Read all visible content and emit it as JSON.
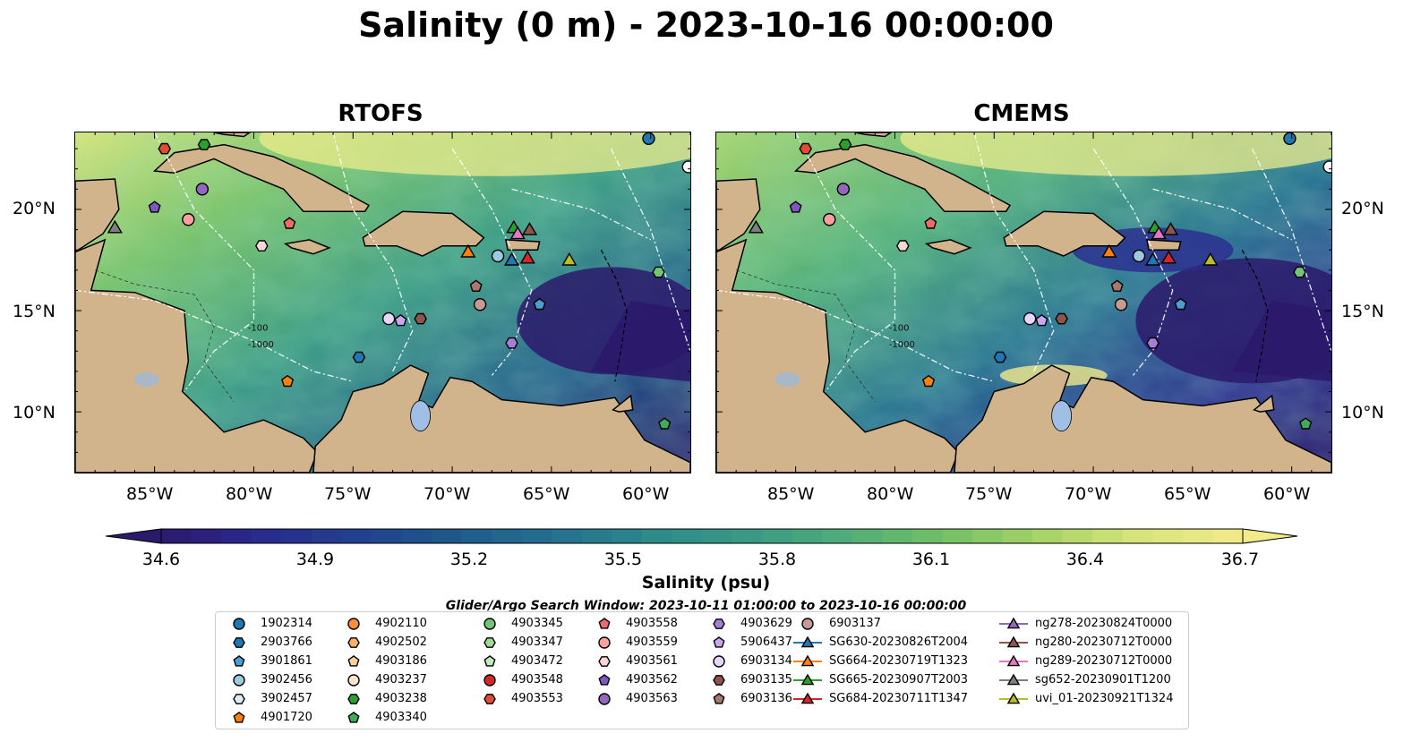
{
  "title": "Salinity (0 m) - 2023-10-16 00:00:00",
  "panels": [
    {
      "title": "RTOFS"
    },
    {
      "title": "CMEMS"
    }
  ],
  "axes": {
    "lon_ticks": [
      "85°W",
      "80°W",
      "75°W",
      "70°W",
      "65°W",
      "60°W"
    ],
    "lat_ticks": [
      "20°N",
      "15°N",
      "10°N"
    ],
    "lon_range": [
      -89,
      -58
    ],
    "lat_range": [
      7,
      23.8
    ]
  },
  "colorbar": {
    "label": "Salinity (psu)",
    "ticks": [
      "34.6",
      "34.9",
      "35.2",
      "35.5",
      "35.8",
      "36.1",
      "36.4",
      "36.7"
    ],
    "range": [
      34.6,
      36.7
    ],
    "colors": [
      "#2b1a6b",
      "#2a2a8f",
      "#22408f",
      "#1f5a8a",
      "#247090",
      "#2c8a8a",
      "#3a9a84",
      "#50ae78",
      "#74c066",
      "#a8d468",
      "#d9e57a",
      "#f3ea8a"
    ]
  },
  "search_window": "Glider/Argo Search Window: 2023-10-11 01:00:00 to 2023-10-16 00:00:00",
  "contour_labels": [
    "-100",
    "-1000"
  ],
  "legend": {
    "columns": [
      [
        {
          "label": "1902314",
          "marker": "circle",
          "color": "#1f77b4"
        },
        {
          "label": "2903766",
          "marker": "hexagon",
          "color": "#1f77b4"
        },
        {
          "label": "3901861",
          "marker": "pentagon",
          "color": "#4a9fd0"
        },
        {
          "label": "3902456",
          "marker": "circle",
          "color": "#9ecae1"
        },
        {
          "label": "3902457",
          "marker": "hexagon",
          "color": "#deebf7"
        },
        {
          "label": "4901720",
          "marker": "pentagon",
          "color": "#ff7f0e"
        }
      ],
      [
        {
          "label": "4902110",
          "marker": "circle",
          "color": "#fd8d3c"
        },
        {
          "label": "4902502",
          "marker": "hexagon",
          "color": "#fdae6b"
        },
        {
          "label": "4903186",
          "marker": "pentagon",
          "color": "#fdd0a2"
        },
        {
          "label": "4903237",
          "marker": "circle",
          "color": "#fee6ce"
        },
        {
          "label": "4903238",
          "marker": "hexagon",
          "color": "#2ca02c"
        },
        {
          "label": "4903340",
          "marker": "pentagon",
          "color": "#41ab5d"
        }
      ],
      [
        {
          "label": "4903345",
          "marker": "circle",
          "color": "#74c476"
        },
        {
          "label": "4903347",
          "marker": "hexagon",
          "color": "#a1d99b"
        },
        {
          "label": "4903472",
          "marker": "pentagon",
          "color": "#c7e9c0"
        },
        {
          "label": "4903548",
          "marker": "circle",
          "color": "#d62728"
        },
        {
          "label": "4903553",
          "marker": "hexagon",
          "color": "#e34a33"
        }
      ],
      [
        {
          "label": "4903558",
          "marker": "pentagon",
          "color": "#ef6a6a"
        },
        {
          "label": "4903559",
          "marker": "circle",
          "color": "#fc9f9f"
        },
        {
          "label": "4903561",
          "marker": "hexagon",
          "color": "#fcd5d5"
        },
        {
          "label": "4903562",
          "marker": "pentagon",
          "color": "#7e57c2"
        },
        {
          "label": "4903563",
          "marker": "circle",
          "color": "#9467bd"
        }
      ],
      [
        {
          "label": "4903629",
          "marker": "hexagon",
          "color": "#a57fd6"
        },
        {
          "label": "5906437",
          "marker": "pentagon",
          "color": "#c9a8f0"
        },
        {
          "label": "6903134",
          "marker": "circle",
          "color": "#e8d5fa"
        },
        {
          "label": "6903135",
          "marker": "hexagon",
          "color": "#8c564b"
        },
        {
          "label": "6903136",
          "marker": "pentagon",
          "color": "#a9786a"
        }
      ],
      [
        {
          "label": "6903137",
          "marker": "circle",
          "color": "#c49c94"
        },
        {
          "label": "SG630-20230826T2004",
          "marker": "triangle-line",
          "color": "#1f77b4"
        },
        {
          "label": "SG664-20230719T1323",
          "marker": "triangle-line",
          "color": "#ff7f0e"
        },
        {
          "label": "SG665-20230907T2003",
          "marker": "triangle-line",
          "color": "#2ca02c"
        },
        {
          "label": "SG684-20230711T1347",
          "marker": "triangle-line",
          "color": "#d62728"
        }
      ],
      [
        {
          "label": "ng278-20230824T0000",
          "marker": "triangle-line",
          "color": "#9467bd"
        },
        {
          "label": "ng280-20230712T0000",
          "marker": "triangle-line",
          "color": "#8c564b"
        },
        {
          "label": "ng289-20230712T0000",
          "marker": "triangle-line",
          "color": "#e377c2"
        },
        {
          "label": "sg652-20230901T1200",
          "marker": "triangle-line",
          "color": "#7f7f7f"
        },
        {
          "label": "uvi_01-20230921T1324",
          "marker": "triangle-line",
          "color": "#bcbd22"
        }
      ]
    ]
  },
  "markers": [
    {
      "lon": -60.1,
      "lat": 23.5,
      "shape": "circle",
      "color": "#1f77b4"
    },
    {
      "lon": -82.5,
      "lat": 23.2,
      "shape": "hexagon",
      "color": "#2ca02c"
    },
    {
      "lon": -84.5,
      "lat": 23.0,
      "shape": "hexagon",
      "color": "#e34a33"
    },
    {
      "lon": -82.6,
      "lat": 21.0,
      "shape": "circle",
      "color": "#9467bd"
    },
    {
      "lon": -85.0,
      "lat": 20.1,
      "shape": "pentagon",
      "color": "#7e57c2"
    },
    {
      "lon": -83.3,
      "lat": 19.5,
      "shape": "circle",
      "color": "#fc9f9f"
    },
    {
      "lon": -78.2,
      "lat": 19.3,
      "shape": "pentagon",
      "color": "#ef6a6a"
    },
    {
      "lon": -79.6,
      "lat": 18.2,
      "shape": "hexagon",
      "color": "#fcd5d5"
    },
    {
      "lon": -87.0,
      "lat": 19.1,
      "shape": "triangle",
      "color": "#7f7f7f"
    },
    {
      "lon": -66.9,
      "lat": 19.1,
      "shape": "triangle",
      "color": "#2ca02c"
    },
    {
      "lon": -66.1,
      "lat": 19.0,
      "shape": "triangle",
      "color": "#8c564b"
    },
    {
      "lon": -66.7,
      "lat": 18.8,
      "shape": "triangle",
      "color": "#e377c2"
    },
    {
      "lon": -69.2,
      "lat": 17.9,
      "shape": "triangle",
      "color": "#ff7f0e"
    },
    {
      "lon": -67.7,
      "lat": 17.7,
      "shape": "circle",
      "color": "#9ecae1"
    },
    {
      "lon": -67.0,
      "lat": 17.5,
      "shape": "triangle",
      "color": "#1f77b4"
    },
    {
      "lon": -66.2,
      "lat": 17.6,
      "shape": "triangle",
      "color": "#d62728"
    },
    {
      "lon": -64.1,
      "lat": 17.5,
      "shape": "triangle",
      "color": "#bcbd22"
    },
    {
      "lon": -59.6,
      "lat": 16.9,
      "shape": "hexagon",
      "color": "#74c476"
    },
    {
      "lon": -68.8,
      "lat": 16.2,
      "shape": "pentagon",
      "color": "#a9786a"
    },
    {
      "lon": -68.6,
      "lat": 15.3,
      "shape": "circle",
      "color": "#c49c94"
    },
    {
      "lon": -65.6,
      "lat": 15.3,
      "shape": "pentagon",
      "color": "#4a9fd0"
    },
    {
      "lon": -73.2,
      "lat": 14.6,
      "shape": "circle",
      "color": "#e8d5fa"
    },
    {
      "lon": -72.6,
      "lat": 14.5,
      "shape": "pentagon",
      "color": "#c9a8f0"
    },
    {
      "lon": -71.6,
      "lat": 14.6,
      "shape": "hexagon",
      "color": "#8c564b"
    },
    {
      "lon": -67.0,
      "lat": 13.4,
      "shape": "hexagon",
      "color": "#a57fd6"
    },
    {
      "lon": -74.7,
      "lat": 12.7,
      "shape": "hexagon",
      "color": "#1f77b4"
    },
    {
      "lon": -78.3,
      "lat": 11.5,
      "shape": "pentagon",
      "color": "#ff7f0e"
    },
    {
      "lon": -59.3,
      "lat": 9.4,
      "shape": "pentagon",
      "color": "#41ab5d"
    },
    {
      "lon": -58.1,
      "lat": 22.1,
      "shape": "circle",
      "color": "#ffffff"
    }
  ]
}
